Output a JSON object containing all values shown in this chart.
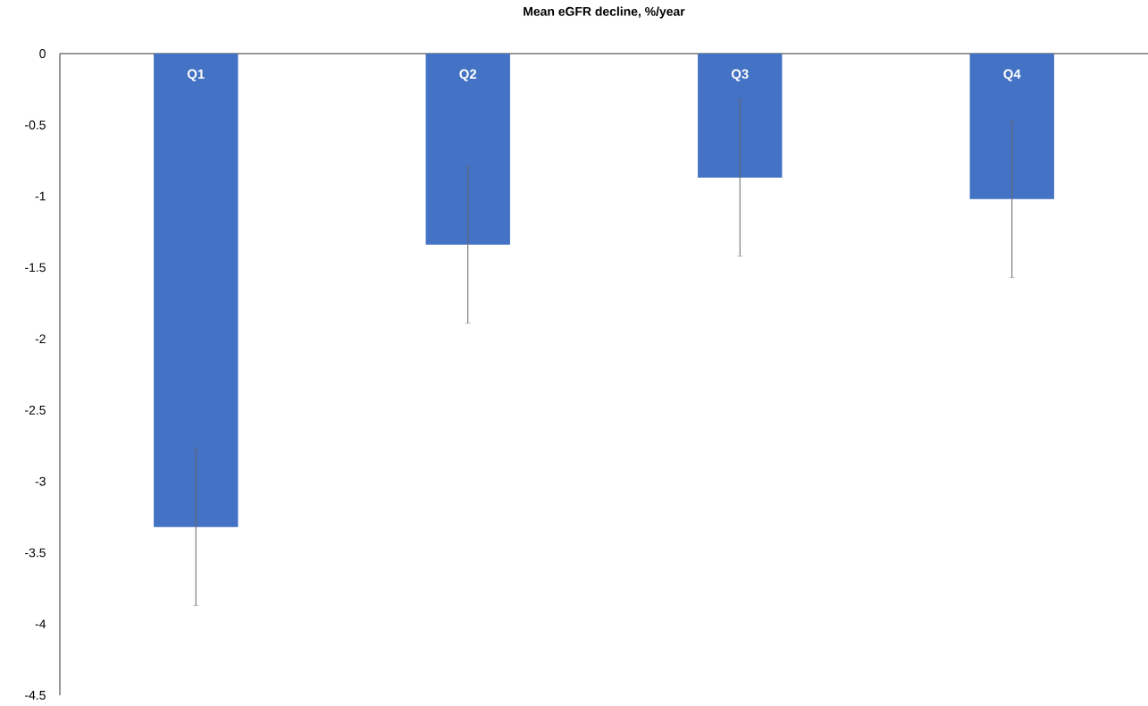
{
  "chart_data": {
    "type": "bar",
    "title": "Mean eGFR decline, %/year",
    "categories": [
      "Q1",
      "Q2",
      "Q3",
      "Q4"
    ],
    "values": [
      -3.32,
      -1.34,
      -0.87,
      -1.02
    ],
    "errors": [
      0.55,
      0.55,
      0.55,
      0.55
    ],
    "color": "#4472c4",
    "ylim": [
      -4.5,
      0
    ],
    "yticks": [
      0,
      -0.5,
      -1,
      -1.5,
      -2,
      -2.5,
      -3,
      -3.5,
      -4,
      -4.5
    ]
  }
}
